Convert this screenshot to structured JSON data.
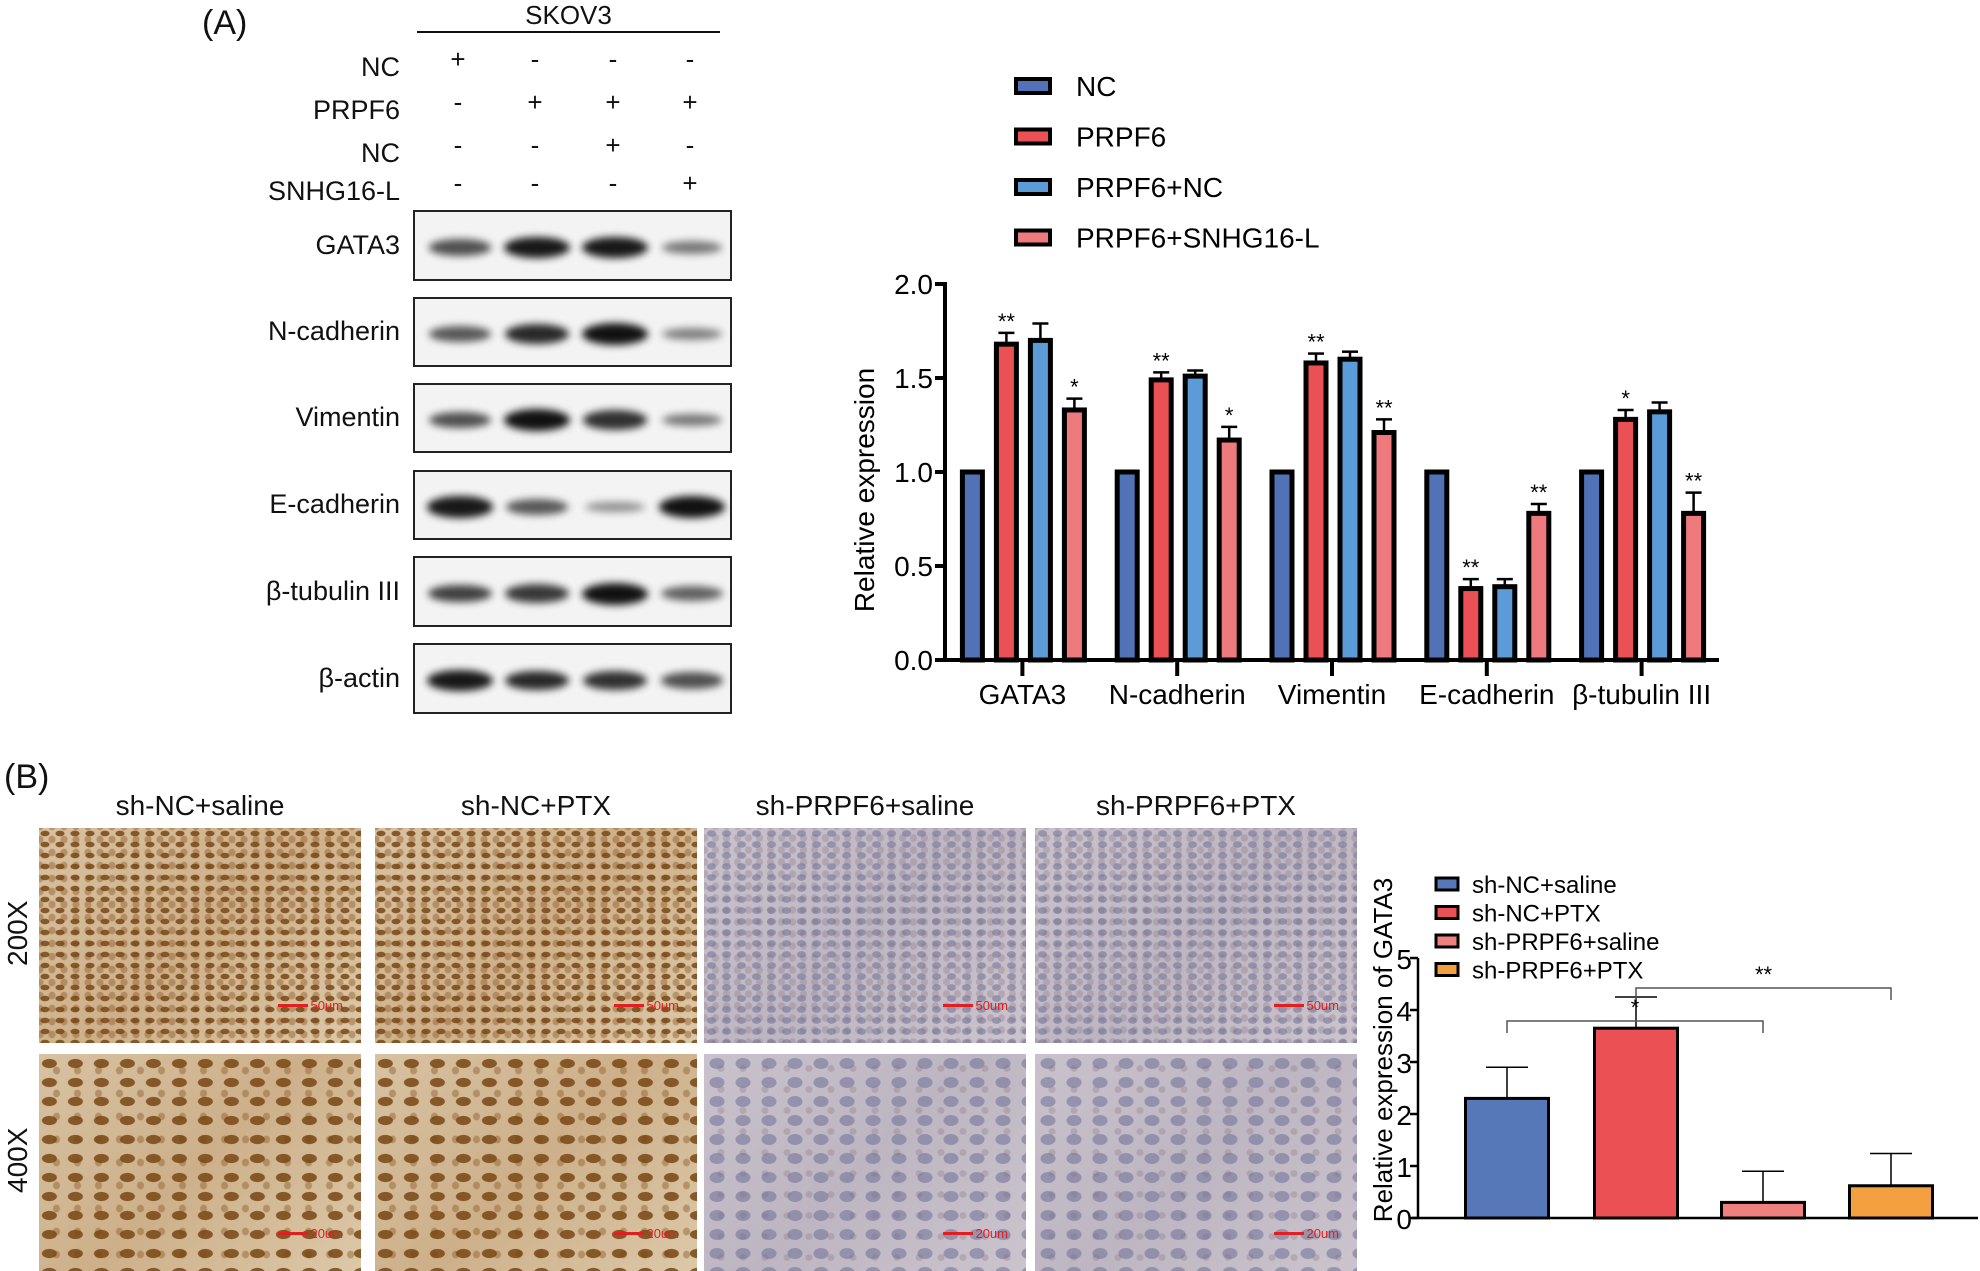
{
  "panel_a_label": "(A)",
  "panel_b_label": "(B)",
  "western_blot": {
    "cell_line": "SKOV3",
    "conditions": [
      {
        "label": "NC",
        "signs": [
          "+",
          "-",
          "-",
          "-"
        ]
      },
      {
        "label": "PRPF6",
        "signs": [
          "-",
          "+",
          "+",
          "+"
        ]
      },
      {
        "label": "NC",
        "signs": [
          "-",
          "-",
          "+",
          "-"
        ]
      },
      {
        "label": "SNHG16-L",
        "signs": [
          "-",
          "-",
          "-",
          "+"
        ]
      }
    ],
    "proteins": [
      {
        "label": "GATA3",
        "intensity": [
          0.6,
          0.95,
          0.95,
          0.35
        ]
      },
      {
        "label": "N-cadherin",
        "intensity": [
          0.55,
          0.85,
          1.0,
          0.3
        ]
      },
      {
        "label": "Vimentin",
        "intensity": [
          0.6,
          1.0,
          0.8,
          0.35
        ]
      },
      {
        "label": "E-cadherin",
        "intensity": [
          0.95,
          0.55,
          0.2,
          1.0
        ]
      },
      {
        "label": "β-tubulin III",
        "intensity": [
          0.7,
          0.75,
          1.0,
          0.5
        ]
      },
      {
        "label": "β-actin",
        "intensity": [
          0.95,
          0.85,
          0.8,
          0.6
        ]
      }
    ]
  },
  "ihc": {
    "columns": [
      "sh-NC+saline",
      "sh-NC+PTX",
      "sh-PRPF6+saline",
      "sh-PRPF6+PTX"
    ],
    "rows": [
      {
        "label": "200X",
        "scale": "50um"
      },
      {
        "label": "400X",
        "scale": "20um"
      }
    ],
    "stain": [
      "brown",
      "brown",
      "blue",
      "blue"
    ]
  },
  "chart_data": [
    {
      "type": "bar",
      "ylabel": "Relative expression",
      "xlabel": "",
      "ylim": [
        0,
        2.0
      ],
      "yticks": [
        "0.0",
        "0.5",
        "1.0",
        "1.5",
        "2.0"
      ],
      "categories": [
        "GATA3",
        "N-cadherin",
        "Vimentin",
        "E-cadherin",
        "β-tubulin III"
      ],
      "legend_position": "top",
      "series": [
        {
          "name": "NC",
          "color": "#5272b8",
          "values": [
            1,
            1,
            1,
            1,
            1
          ],
          "errors": [
            0,
            0,
            0,
            0,
            0
          ],
          "sig": [
            "",
            "",
            "",
            "",
            ""
          ]
        },
        {
          "name": "PRPF6",
          "color": "#eb5055",
          "values": [
            1.68,
            1.49,
            1.58,
            0.38,
            1.28
          ],
          "errors": [
            0.06,
            0.04,
            0.05,
            0.05,
            0.05
          ],
          "sig": [
            "**",
            "**",
            "**",
            "**",
            "*"
          ]
        },
        {
          "name": "PRPF6+NC",
          "color": "#5b9bd8",
          "values": [
            1.7,
            1.51,
            1.6,
            0.39,
            1.32
          ],
          "errors": [
            0.09,
            0.03,
            0.04,
            0.04,
            0.05
          ],
          "sig": [
            "",
            "",
            "",
            "",
            ""
          ]
        },
        {
          "name": "PRPF6+SNHG16-L",
          "color": "#ee7a7d",
          "values": [
            1.33,
            1.17,
            1.21,
            0.78,
            0.78
          ],
          "errors": [
            0.06,
            0.07,
            0.07,
            0.05,
            0.11
          ],
          "sig": [
            "*",
            "*",
            "**",
            "**",
            "**"
          ]
        }
      ]
    },
    {
      "type": "bar",
      "ylabel": "Relative expression of GATA3",
      "ylim": [
        0,
        5
      ],
      "yticks": [
        "0",
        "1",
        "2",
        "3",
        "4",
        "5"
      ],
      "legend_position": "top-left",
      "categories": [
        "sh-NC+saline",
        "sh-NC+PTX",
        "sh-PRPF6+saline",
        "sh-PRPF6+PTX"
      ],
      "colors": [
        "#5677b8",
        "#eb5055",
        "#ef8080",
        "#f4a040"
      ],
      "values": [
        2.3,
        3.65,
        0.3,
        0.62
      ],
      "errors": [
        0.6,
        0.6,
        0.6,
        0.62
      ],
      "comparisons": [
        {
          "from": 0,
          "to": 2,
          "label": "*"
        },
        {
          "from": 1,
          "to": 3,
          "label": "**"
        }
      ]
    }
  ]
}
